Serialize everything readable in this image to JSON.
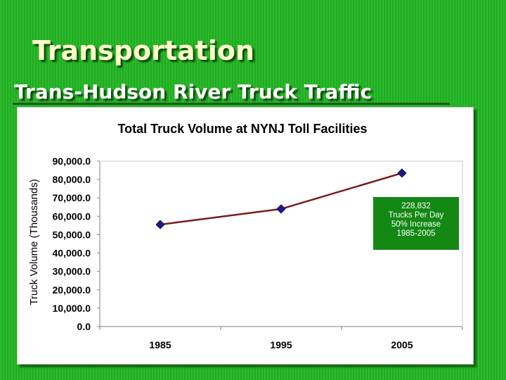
{
  "slide": {
    "title": "Transportation",
    "subtitle": "Trans-Hudson River Truck Traffic"
  },
  "colors": {
    "background": "#22b422",
    "title_text": "#ffffcc",
    "line": "#7a1a1a",
    "marker": "#1a1a8a",
    "callout_bg": "#138813"
  },
  "callout": {
    "lines": [
      "228,832",
      "Trucks Per Day",
      "50% Increase",
      "1985-2005"
    ]
  },
  "chart_data": {
    "type": "line",
    "title": "Total Truck Volume at NYNJ Toll Facilities",
    "xlabel": "",
    "ylabel": "Truck Volume (Thousands)",
    "categories": [
      "1985",
      "1995",
      "2005"
    ],
    "series": [
      {
        "values": [
          55500,
          64000,
          83500
        ]
      }
    ],
    "ylim": [
      0,
      90000
    ],
    "ytick_labels": [
      "0.0",
      "10,000.0",
      "20,000.0",
      "30,000.0",
      "40,000.0",
      "50,000.0",
      "60,000.0",
      "70,000.0",
      "80,000.0",
      "90,000.0"
    ],
    "grid": false,
    "legend": "none"
  }
}
